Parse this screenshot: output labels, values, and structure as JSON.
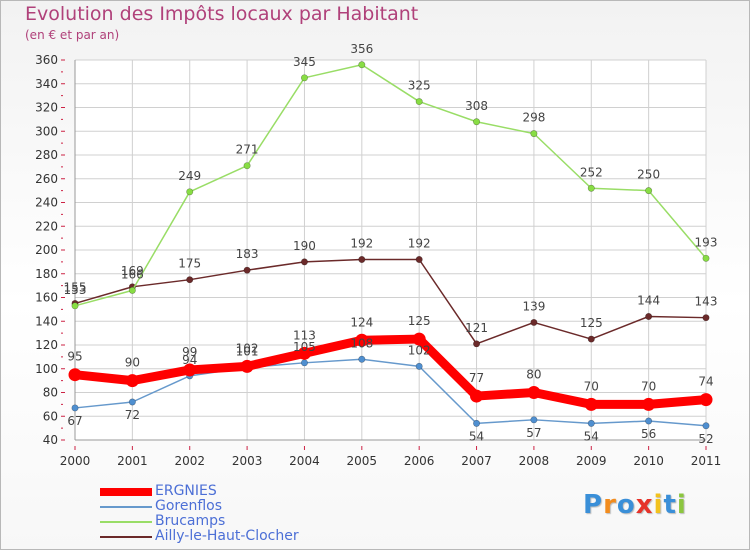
{
  "header": {
    "title": "Evolution des Impôts locaux par Habitant",
    "subtitle": "(en € et par an)"
  },
  "chart_data": {
    "type": "line",
    "title": "Evolution des Impôts locaux par Habitant",
    "subtitle": "(en € et par an)",
    "xlabel": "",
    "ylabel": "",
    "x": [
      "2000",
      "2001",
      "2002",
      "2003",
      "2004",
      "2005",
      "2006",
      "2007",
      "2008",
      "2009",
      "2010",
      "2011"
    ],
    "ylim": [
      40,
      360
    ],
    "yticks": [
      40,
      60,
      80,
      100,
      120,
      140,
      160,
      180,
      200,
      220,
      240,
      260,
      280,
      300,
      320,
      340,
      360
    ],
    "grid": true,
    "legend_position": "bottom-left",
    "series": [
      {
        "name": "ERGNIES",
        "color": "#ff0000",
        "values": [
          95,
          90,
          99,
          102,
          113,
          124,
          125,
          77,
          80,
          70,
          70,
          74
        ]
      },
      {
        "name": "Gorenflos",
        "color": "#6699cc",
        "values": [
          67,
          72,
          94,
          101,
          105,
          108,
          102,
          54,
          57,
          54,
          56,
          52
        ]
      },
      {
        "name": "Brucamps",
        "color": "#99dd66",
        "values": [
          153,
          166,
          249,
          271,
          345,
          356,
          325,
          308,
          298,
          252,
          250,
          193
        ]
      },
      {
        "name": "Ailly-le-Haut-Clocher",
        "color": "#6b2a2a",
        "values": [
          155,
          169,
          175,
          183,
          190,
          192,
          192,
          121,
          139,
          125,
          144,
          143
        ]
      }
    ],
    "labels": [
      {
        "series": 1,
        "values": [
          "67",
          "72",
          "94",
          "101",
          "105",
          "108",
          "102",
          "54",
          "57",
          "54",
          "56",
          "52"
        ]
      },
      {
        "series": 2,
        "values": [
          "153",
          "166",
          "249",
          "271",
          "345",
          "356",
          "325",
          "308",
          "298",
          "252",
          "250",
          "193"
        ]
      },
      {
        "series": 3,
        "values": [
          "155",
          "169",
          "175",
          "183",
          "190",
          "192",
          "192",
          "121",
          "139",
          "125",
          "144",
          "143"
        ]
      },
      {
        "series": 0,
        "values": [
          "95",
          "90",
          "99",
          "102",
          "113",
          "124",
          "125",
          "77",
          "80",
          "70",
          "70",
          "74"
        ]
      }
    ]
  },
  "legend": {
    "items": [
      {
        "label": "ERGNIES",
        "color": "#ff0000"
      },
      {
        "label": "Gorenflos",
        "color": "#6699cc"
      },
      {
        "label": "Brucamps",
        "color": "#99dd66"
      },
      {
        "label": "Ailly-le-Haut-Clocher",
        "color": "#6b2a2a"
      }
    ]
  },
  "logo": {
    "letters": [
      "P",
      "r",
      "o",
      "x",
      "i",
      "t",
      "i"
    ],
    "colors": [
      "#3a8fd8",
      "#f28c1e",
      "#3a8fd8",
      "#e6332a",
      "#f2c21e",
      "#3a8fd8",
      "#8cc63f"
    ]
  }
}
